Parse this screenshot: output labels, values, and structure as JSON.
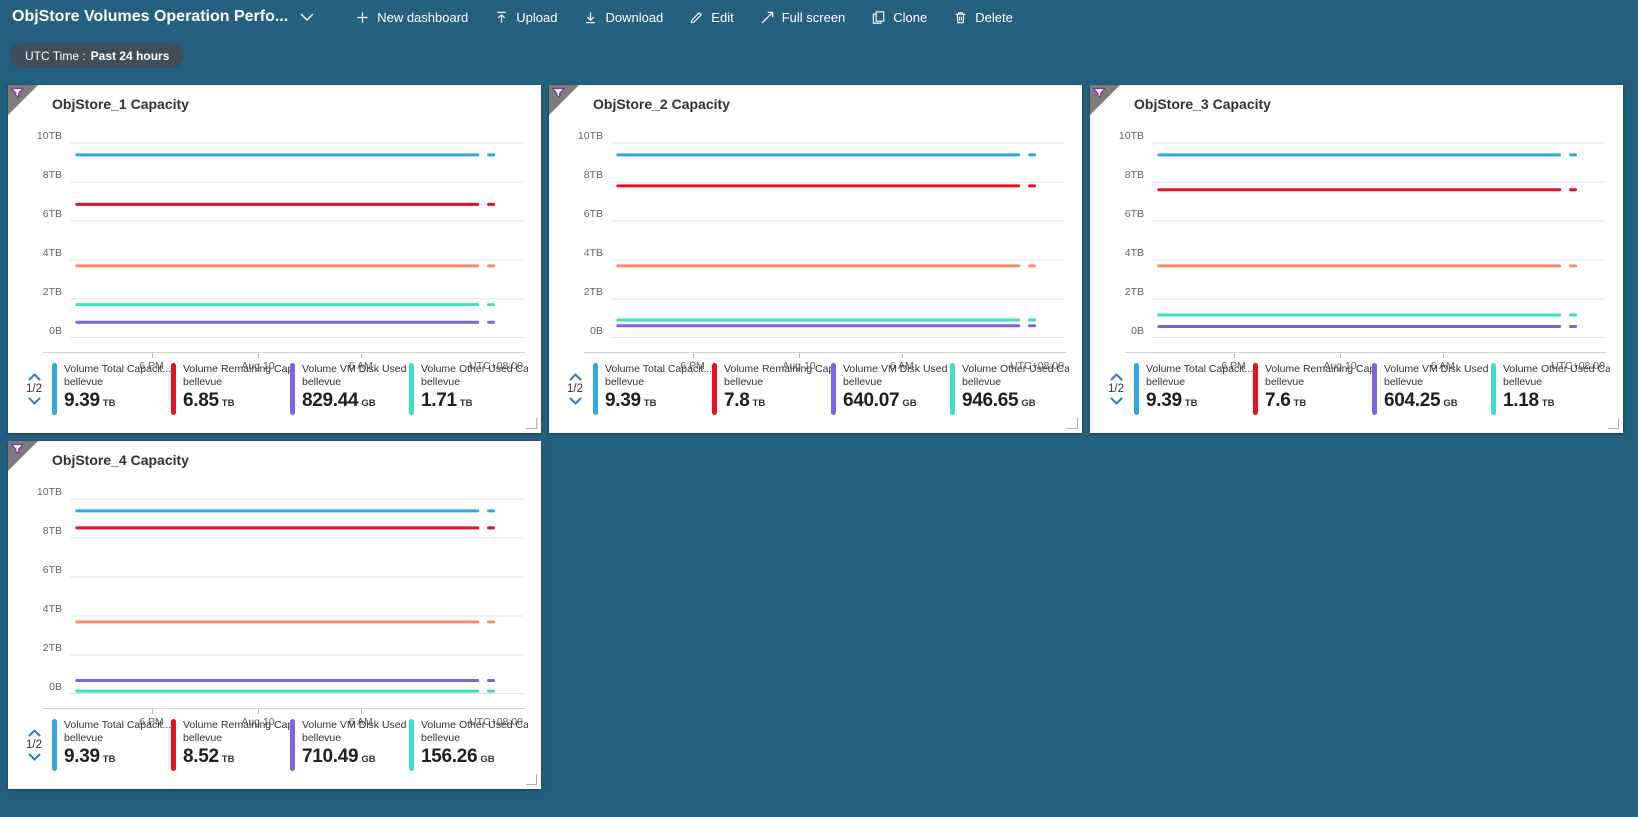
{
  "header": {
    "title": "ObjStore Volumes Operation Perfo...",
    "title_chevron_icon": "chevron-down-icon",
    "commands": [
      {
        "icon": "plus-icon",
        "label": "New dashboard"
      },
      {
        "icon": "upload-icon",
        "label": "Upload"
      },
      {
        "icon": "download-icon",
        "label": "Download"
      },
      {
        "icon": "edit-icon",
        "label": "Edit"
      },
      {
        "icon": "fullscreen-icon",
        "label": "Full screen"
      },
      {
        "icon": "clone-icon",
        "label": "Clone"
      },
      {
        "icon": "delete-icon",
        "label": "Delete"
      }
    ]
  },
  "filter_pill": {
    "label": "UTC Time :",
    "value": "Past 24 hours"
  },
  "axis": {
    "y_ticks": [
      "10TB",
      "8TB",
      "6TB",
      "4TB",
      "2TB",
      "0B"
    ],
    "x_ticks": [
      "6 PM",
      "Aug 10",
      "6 AM"
    ],
    "timezone_label": "UTC+08:00",
    "y_max_tb": 10
  },
  "legend_pager": {
    "page": "1/2",
    "up_icon": "chevron-up-icon",
    "down_icon": "chevron-down-icon"
  },
  "colors": {
    "page_background": "#24607f",
    "tile_background": "#ffffff",
    "pill_background": "#3f4e5b",
    "series_blue": "#31a8e2",
    "series_red": "#e81123",
    "series_orange": "#ef8f6f",
    "series_purple": "#7e62e3",
    "series_teal": "#3ee0c3",
    "pager_chevron": "#2b7bd0",
    "corner_triangle": "#7c7c7c",
    "funnel_stroke": "#8a2da5"
  },
  "tiles": [
    {
      "title": "ObjStore_1 Capacity",
      "legend": [
        {
          "label": "Volume Total Capacit...",
          "resource": "bellevue",
          "value": "9.39",
          "unit": "TB",
          "color": "#31a8e2",
          "value_tb": 9.39
        },
        {
          "label": "Volume Remaining Cap...",
          "resource": "bellevue",
          "value": "6.85",
          "unit": "TB",
          "color": "#e81123",
          "value_tb": 6.85
        },
        {
          "label": "Volume VM Disk Used ...",
          "resource": "bellevue",
          "value": "829.44",
          "unit": "GB",
          "color": "#7e62e3",
          "value_tb": 0.81
        },
        {
          "label": "Volume Other Used Ca...",
          "resource": "bellevue",
          "value": "1.71",
          "unit": "TB",
          "color": "#3ee0c3",
          "value_tb": 1.71
        }
      ],
      "unlabeled_series": [
        {
          "color": "#ef8f6f",
          "value_tb": 3.7
        }
      ]
    },
    {
      "title": "ObjStore_2 Capacity",
      "legend": [
        {
          "label": "Volume Total Capacit...",
          "resource": "bellevue",
          "value": "9.39",
          "unit": "TB",
          "color": "#31a8e2",
          "value_tb": 9.39
        },
        {
          "label": "Volume Remaining Cap...",
          "resource": "bellevue",
          "value": "7.8",
          "unit": "TB",
          "color": "#e81123",
          "value_tb": 7.8
        },
        {
          "label": "Volume VM Disk Used ...",
          "resource": "bellevue",
          "value": "640.07",
          "unit": "GB",
          "color": "#7e62e3",
          "value_tb": 0.63
        },
        {
          "label": "Volume Other Used Ca...",
          "resource": "bellevue",
          "value": "946.65",
          "unit": "GB",
          "color": "#3ee0c3",
          "value_tb": 0.92
        }
      ],
      "unlabeled_series": [
        {
          "color": "#ef8f6f",
          "value_tb": 3.7
        }
      ]
    },
    {
      "title": "ObjStore_3 Capacity",
      "legend": [
        {
          "label": "Volume Total Capacit...",
          "resource": "bellevue",
          "value": "9.39",
          "unit": "TB",
          "color": "#31a8e2",
          "value_tb": 9.39
        },
        {
          "label": "Volume Remaining Cap...",
          "resource": "bellevue",
          "value": "7.6",
          "unit": "TB",
          "color": "#e81123",
          "value_tb": 7.6
        },
        {
          "label": "Volume VM Disk Used ...",
          "resource": "bellevue",
          "value": "604.25",
          "unit": "GB",
          "color": "#7e62e3",
          "value_tb": 0.59
        },
        {
          "label": "Volume Other Used Ca...",
          "resource": "bellevue",
          "value": "1.18",
          "unit": "TB",
          "color": "#3ee0c3",
          "value_tb": 1.18
        }
      ],
      "unlabeled_series": [
        {
          "color": "#ef8f6f",
          "value_tb": 3.7
        }
      ]
    },
    {
      "title": "ObjStore_4 Capacity",
      "legend": [
        {
          "label": "Volume Total Capacit...",
          "resource": "bellevue",
          "value": "9.39",
          "unit": "TB",
          "color": "#31a8e2",
          "value_tb": 9.39
        },
        {
          "label": "Volume Remaining Cap...",
          "resource": "bellevue",
          "value": "8.52",
          "unit": "TB",
          "color": "#e81123",
          "value_tb": 8.52
        },
        {
          "label": "Volume VM Disk Used ...",
          "resource": "bellevue",
          "value": "710.49",
          "unit": "GB",
          "color": "#7e62e3",
          "value_tb": 0.69
        },
        {
          "label": "Volume Other Used Ca...",
          "resource": "bellevue",
          "value": "156.26",
          "unit": "GB",
          "color": "#3ee0c3",
          "value_tb": 0.15
        }
      ],
      "unlabeled_series": [
        {
          "color": "#ef8f6f",
          "value_tb": 3.7
        }
      ]
    }
  ],
  "chart_data": [
    {
      "type": "line",
      "title": "ObjStore_1 Capacity",
      "x_ticks": [
        "6 PM",
        "Aug 10",
        "6 AM"
      ],
      "timezone": "UTC+08:00",
      "ylim_tb": [
        0,
        10
      ],
      "y_tick_labels": [
        "0B",
        "2TB",
        "4TB",
        "6TB",
        "8TB",
        "10TB"
      ],
      "legend_position": "bottom",
      "grid": true,
      "series": [
        {
          "name": "Volume Total Capacit...",
          "resource": "bellevue",
          "color": "#31a8e2",
          "constant_value_display": "9.39 TB",
          "value_tb": 9.39
        },
        {
          "name": "Volume Remaining Cap...",
          "resource": "bellevue",
          "color": "#e81123",
          "constant_value_display": "6.85 TB",
          "value_tb": 6.85
        },
        {
          "name": "Volume VM Disk Used ...",
          "resource": "bellevue",
          "color": "#7e62e3",
          "constant_value_display": "829.44 GB",
          "value_tb": 0.81
        },
        {
          "name": "Volume Other Used Ca...",
          "resource": "bellevue",
          "color": "#3ee0c3",
          "constant_value_display": "1.71 TB",
          "value_tb": 1.71
        },
        {
          "name": "",
          "color": "#ef8f6f",
          "value_tb": 3.7
        }
      ]
    },
    {
      "type": "line",
      "title": "ObjStore_2 Capacity",
      "x_ticks": [
        "6 PM",
        "Aug 10",
        "6 AM"
      ],
      "timezone": "UTC+08:00",
      "ylim_tb": [
        0,
        10
      ],
      "y_tick_labels": [
        "0B",
        "2TB",
        "4TB",
        "6TB",
        "8TB",
        "10TB"
      ],
      "legend_position": "bottom",
      "grid": true,
      "series": [
        {
          "name": "Volume Total Capacit...",
          "resource": "bellevue",
          "color": "#31a8e2",
          "constant_value_display": "9.39 TB",
          "value_tb": 9.39
        },
        {
          "name": "Volume Remaining Cap...",
          "resource": "bellevue",
          "color": "#e81123",
          "constant_value_display": "7.8 TB",
          "value_tb": 7.8
        },
        {
          "name": "Volume VM Disk Used ...",
          "resource": "bellevue",
          "color": "#7e62e3",
          "constant_value_display": "640.07 GB",
          "value_tb": 0.63
        },
        {
          "name": "Volume Other Used Ca...",
          "resource": "bellevue",
          "color": "#3ee0c3",
          "constant_value_display": "946.65 GB",
          "value_tb": 0.92
        },
        {
          "name": "",
          "color": "#ef8f6f",
          "value_tb": 3.7
        }
      ]
    },
    {
      "type": "line",
      "title": "ObjStore_3 Capacity",
      "x_ticks": [
        "6 PM",
        "Aug 10",
        "6 AM"
      ],
      "timezone": "UTC+08:00",
      "ylim_tb": [
        0,
        10
      ],
      "y_tick_labels": [
        "0B",
        "2TB",
        "4TB",
        "6TB",
        "8TB",
        "10TB"
      ],
      "legend_position": "bottom",
      "grid": true,
      "series": [
        {
          "name": "Volume Total Capacit...",
          "resource": "bellevue",
          "color": "#31a8e2",
          "constant_value_display": "9.39 TB",
          "value_tb": 9.39
        },
        {
          "name": "Volume Remaining Cap...",
          "resource": "bellevue",
          "color": "#e81123",
          "constant_value_display": "7.6 TB",
          "value_tb": 7.6
        },
        {
          "name": "Volume VM Disk Used ...",
          "resource": "bellevue",
          "color": "#7e62e3",
          "constant_value_display": "604.25 GB",
          "value_tb": 0.59
        },
        {
          "name": "Volume Other Used Ca...",
          "resource": "bellevue",
          "color": "#3ee0c3",
          "constant_value_display": "1.18 TB",
          "value_tb": 1.18
        },
        {
          "name": "",
          "color": "#ef8f6f",
          "value_tb": 3.7
        }
      ]
    },
    {
      "type": "line",
      "title": "ObjStore_4 Capacity",
      "x_ticks": [
        "6 PM",
        "Aug 10",
        "6 AM"
      ],
      "timezone": "UTC+08:00",
      "ylim_tb": [
        0,
        10
      ],
      "y_tick_labels": [
        "0B",
        "2TB",
        "4TB",
        "6TB",
        "8TB",
        "10TB"
      ],
      "legend_position": "bottom",
      "grid": true,
      "series": [
        {
          "name": "Volume Total Capacit...",
          "resource": "bellevue",
          "color": "#31a8e2",
          "constant_value_display": "9.39 TB",
          "value_tb": 9.39
        },
        {
          "name": "Volume Remaining Cap...",
          "resource": "bellevue",
          "color": "#e81123",
          "constant_value_display": "8.52 TB",
          "value_tb": 8.52
        },
        {
          "name": "Volume VM Disk Used ...",
          "resource": "bellevue",
          "color": "#7e62e3",
          "constant_value_display": "710.49 GB",
          "value_tb": 0.69
        },
        {
          "name": "Volume Other Used Ca...",
          "resource": "bellevue",
          "color": "#3ee0c3",
          "constant_value_display": "156.26 GB",
          "value_tb": 0.15
        },
        {
          "name": "",
          "color": "#ef8f6f",
          "value_tb": 3.7
        }
      ]
    }
  ]
}
